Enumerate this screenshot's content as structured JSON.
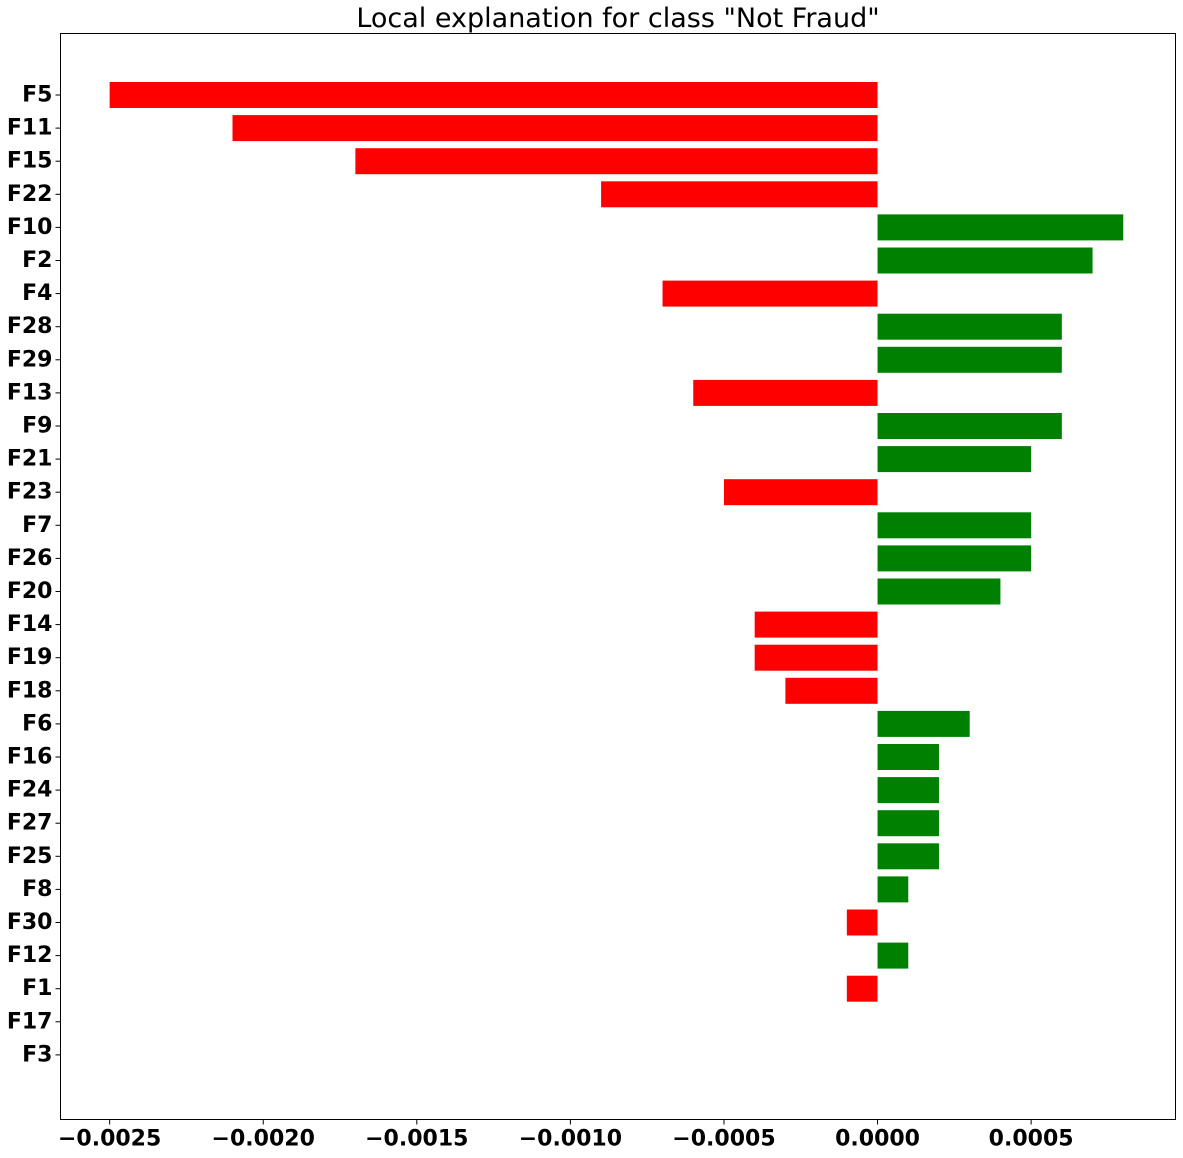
{
  "chart_data": {
    "type": "bar",
    "orientation": "horizontal",
    "title": "Local explanation for class \"Not Fraud\"",
    "xlabel": "",
    "ylabel": "",
    "xlim": [
      -0.00266,
      0.00097
    ],
    "x_ticks": [
      -0.0025,
      -0.002,
      -0.0015,
      -0.001,
      -0.0005,
      0.0,
      0.0005
    ],
    "x_tick_labels": [
      "−0.0025",
      "−0.0020",
      "−0.0015",
      "−0.0010",
      "−0.0005",
      "0.0000",
      "0.0005"
    ],
    "grid": false,
    "legend": "none",
    "colors": {
      "positive": "#008000",
      "negative": "#ff0000"
    },
    "categories": [
      "F5",
      "F11",
      "F15",
      "F22",
      "F10",
      "F2",
      "F4",
      "F28",
      "F29",
      "F13",
      "F9",
      "F21",
      "F23",
      "F7",
      "F26",
      "F20",
      "F14",
      "F19",
      "F18",
      "F6",
      "F16",
      "F24",
      "F27",
      "F25",
      "F8",
      "F30",
      "F12",
      "F1",
      "F17",
      "F3"
    ],
    "values": [
      -0.0025,
      -0.0021,
      -0.0017,
      -0.0009,
      0.0008,
      0.0007,
      -0.0007,
      0.0006,
      0.0006,
      -0.0006,
      0.0006,
      0.0005,
      -0.0005,
      0.0005,
      0.0005,
      0.0004,
      -0.0004,
      -0.0004,
      -0.0003,
      0.0003,
      0.0002,
      0.0002,
      0.0002,
      0.0002,
      0.0001,
      -0.0001,
      0.0001,
      -0.0001,
      0.0,
      0.0
    ]
  }
}
